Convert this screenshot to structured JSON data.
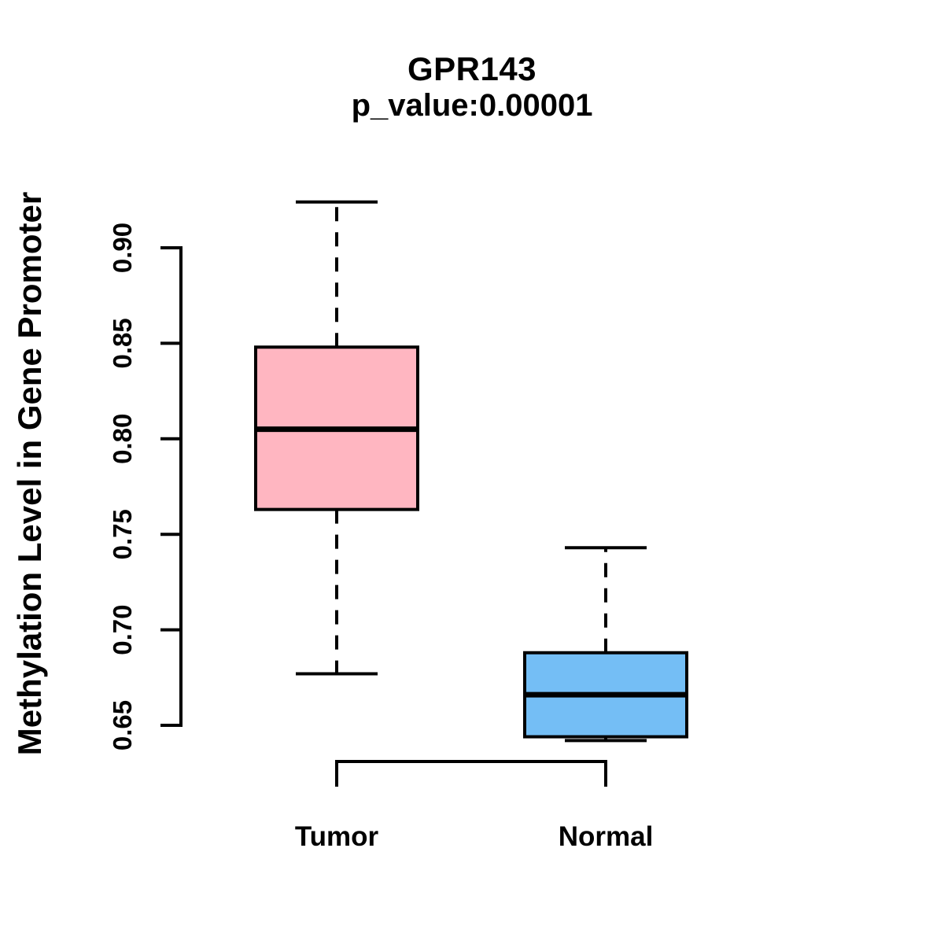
{
  "figure": {
    "background": "#FFFFFF",
    "line_color": "#000000"
  },
  "chart_data": {
    "type": "boxplot",
    "title": "GPR143",
    "subtitle": "p_value:0.00001",
    "xlabel": "",
    "ylabel": "Methylation Level in Gene Promoter",
    "categories": [
      "Tumor",
      "Normal"
    ],
    "y_ticks": [
      0.65,
      0.7,
      0.75,
      0.8,
      0.85,
      0.9
    ],
    "ylim": [
      0.64,
      0.93
    ],
    "grid": false,
    "legend": "none",
    "series": [
      {
        "name": "Tumor",
        "color": "#FFB6C1",
        "whisker_low": 0.677,
        "q1": 0.763,
        "median": 0.805,
        "q3": 0.848,
        "whisker_high": 0.924
      },
      {
        "name": "Normal",
        "color": "#74BEF5",
        "whisker_low": 0.642,
        "q1": 0.644,
        "median": 0.666,
        "q3": 0.688,
        "whisker_high": 0.743
      }
    ]
  }
}
